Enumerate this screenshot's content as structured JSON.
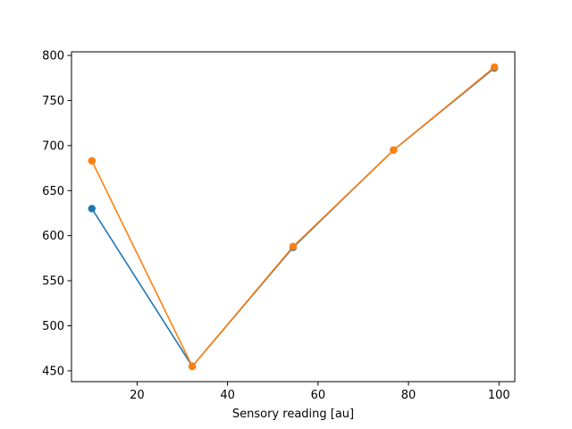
{
  "chart_data": {
    "type": "line",
    "title": "",
    "xlabel": "Sensory reading [au]",
    "ylabel": "",
    "xlim": [
      5.5,
      103.5
    ],
    "ylim": [
      438,
      804
    ],
    "xticks": [
      20,
      40,
      60,
      80,
      100
    ],
    "yticks": [
      450,
      500,
      550,
      600,
      650,
      700,
      750,
      800
    ],
    "grid": false,
    "legend": null,
    "series": [
      {
        "color": "#1f77b4",
        "marker": "circle",
        "x": [
          10,
          32.2,
          54.5,
          76.7,
          99
        ],
        "y": [
          630,
          455,
          587,
          695,
          786
        ]
      },
      {
        "color": "#ff7f0e",
        "marker": "circle",
        "x": [
          10,
          32.2,
          54.5,
          76.7,
          99
        ],
        "y": [
          683,
          455,
          588,
          695,
          787
        ]
      }
    ]
  }
}
